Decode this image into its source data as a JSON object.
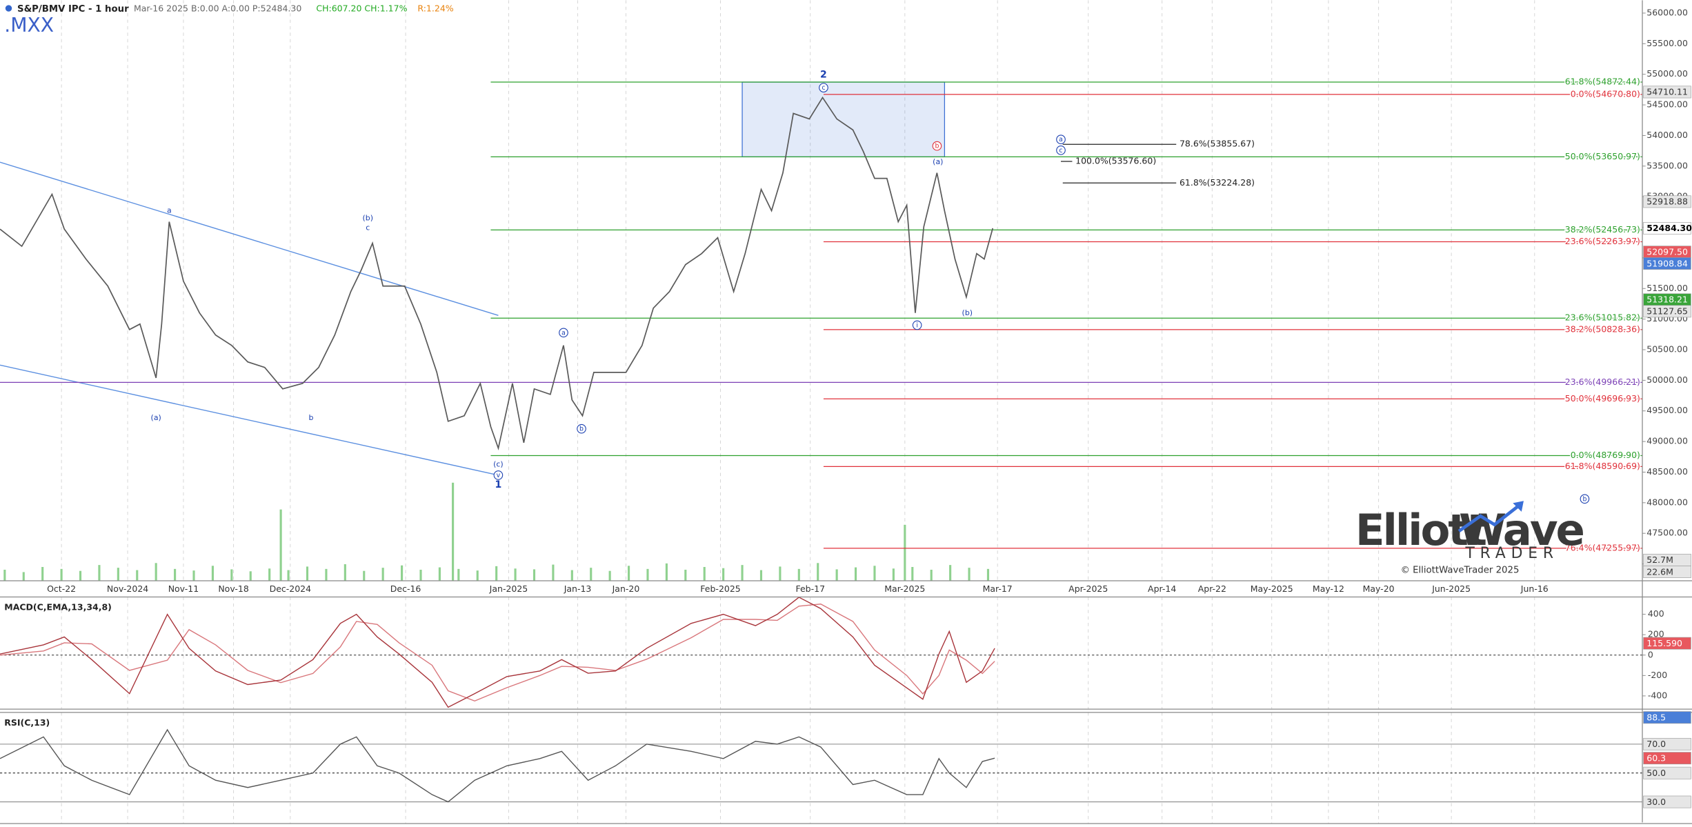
{
  "chart_data": {
    "type": "line",
    "title": "S&P/BMV IPC - 1 hour",
    "symbol": ".MXX",
    "quote": [
      "Mar-16 2025 B:0.00 A:0.00 P:52484.30",
      "CH:607.20 CH:1.17%",
      "R:1.24%"
    ],
    "x": [
      -6.5,
      -4.2,
      -1.0,
      0.3,
      2.6,
      4.9,
      7.2,
      8.3,
      10.0,
      10.6,
      11.4,
      12.9,
      14.6,
      16.3,
      18.0,
      19.7,
      21.5,
      23.4,
      25.5,
      27.2,
      28.9,
      30.6,
      31.7,
      32.9,
      34.0,
      36.3,
      38.0,
      39.7,
      40.9,
      42.6,
      44.3,
      45.4,
      46.2,
      47.7,
      48.9,
      50.0,
      51.7,
      53.1,
      54.0,
      55.1,
      56.3,
      58.0,
      59.7,
      61.4,
      62.6,
      64.3,
      66.0,
      67.7,
      69.4,
      71.1,
      72.3,
      74.0,
      75.1,
      76.3,
      77.4,
      79.1,
      80.5,
      82.0,
      83.7,
      84.8,
      86.0,
      87.3,
      88.5,
      89.4,
      90.3,
      91.2,
      92.6,
      93.4,
      94.5,
      95.7,
      96.8,
      97.6,
      98.5
    ],
    "values": [
      52470,
      52190,
      53040,
      52470,
      51980,
      51540,
      50830,
      50920,
      50040,
      50920,
      52590,
      51620,
      51100,
      50740,
      50570,
      50300,
      50210,
      49860,
      49950,
      50210,
      50740,
      51450,
      51800,
      52240,
      51540,
      51540,
      50920,
      50130,
      49330,
      49420,
      49950,
      49240,
      48890,
      49950,
      48980,
      49860,
      49770,
      50570,
      49680,
      49420,
      50130,
      50130,
      50130,
      50570,
      51180,
      51450,
      51890,
      52070,
      52330,
      51450,
      52070,
      53120,
      52770,
      53390,
      54360,
      54270,
      54620,
      54270,
      54090,
      53740,
      53300,
      53300,
      52590,
      52860,
      51100,
      52510,
      53390,
      52770,
      51980,
      51360,
      52070,
      51980,
      52484.3
    ],
    "color": "#5a5a5a",
    "xlim": [
      -6.5,
      167.2
    ],
    "ylim": [
      46725,
      56210
    ],
    "grid": true,
    "xticks": [
      {
        "value": 0,
        "label": "Oct-22"
      },
      {
        "value": 7,
        "label": "Nov-2024"
      },
      {
        "value": 12.9,
        "label": "Nov-11"
      },
      {
        "value": 18.2,
        "label": "Nov-18"
      },
      {
        "value": 24.2,
        "label": "Dec-2024"
      },
      {
        "value": 36.4,
        "label": "Dec-16"
      },
      {
        "value": 47.3,
        "label": "Jan-2025"
      },
      {
        "value": 54.6,
        "label": "Jan-13"
      },
      {
        "value": 59.7,
        "label": "Jan-20"
      },
      {
        "value": 69.7,
        "label": "Feb-2025"
      },
      {
        "value": 79.2,
        "label": "Feb-17"
      },
      {
        "value": 89.2,
        "label": "Mar-2025"
      },
      {
        "value": 99,
        "label": "Mar-17"
      },
      {
        "value": 108.6,
        "label": "Apr-2025"
      },
      {
        "value": 116.4,
        "label": "Apr-14"
      },
      {
        "value": 121.7,
        "label": "Apr-22"
      },
      {
        "value": 128,
        "label": "May-2025"
      },
      {
        "value": 134,
        "label": "May-12"
      },
      {
        "value": 139.3,
        "label": "May-20"
      },
      {
        "value": 147,
        "label": "Jun-2025"
      },
      {
        "value": 155.8,
        "label": "Jun-16"
      }
    ],
    "yticks": [
      {
        "value": 47000,
        "label": "47000.00"
      },
      {
        "value": 47500,
        "label": "47500.00"
      },
      {
        "value": 48000,
        "label": "48000.00"
      },
      {
        "value": 48500,
        "label": "48500.00"
      },
      {
        "value": 49000,
        "label": "49000.00"
      },
      {
        "value": 49500,
        "label": "49500.00"
      },
      {
        "value": 50000,
        "label": "50000.00"
      },
      {
        "value": 50500,
        "label": "50500.00"
      },
      {
        "value": 51000,
        "label": "51000.00"
      },
      {
        "value": 51500,
        "label": "51500.00"
      },
      {
        "value": 52000,
        "label": "52000.00"
      },
      {
        "value": 52500,
        "label": "52500.00"
      },
      {
        "value": 53000,
        "label": "53000.00"
      },
      {
        "value": 53500,
        "label": "53500.00"
      },
      {
        "value": 54000,
        "label": "54000.00"
      },
      {
        "value": 54500,
        "label": "54500.00"
      },
      {
        "value": 55000,
        "label": "55000.00"
      },
      {
        "value": 55500,
        "label": "55500.00"
      },
      {
        "value": 56000,
        "label": "56000.00"
      }
    ],
    "box": {
      "x": [
        72.0,
        93.4
      ],
      "values": [
        54872.44,
        53650.97
      ],
      "color": "#3b6fd4"
    },
    "trendlines": [
      {
        "x": [
          -6.5,
          46.2
        ],
        "values": [
          53564,
          51060
        ],
        "color": "#5b8fe0"
      },
      {
        "x": [
          -6.5,
          46.2
        ],
        "values": [
          50249,
          48450
        ],
        "color": "#5b8fe0"
      }
    ],
    "levels": [
      {
        "label": "61.8%(54872.44)",
        "value": 54872.44,
        "color": "#2ca02c",
        "x": [
          45.4,
          167.2
        ]
      },
      {
        "label": "50.0%(53650.97)",
        "value": 53650.97,
        "color": "#2ca02c",
        "x": [
          45.4,
          167.2
        ]
      },
      {
        "label": "38.2%(52456.73)",
        "value": 52456.73,
        "color": "#2ca02c",
        "x": [
          45.4,
          167.2
        ]
      },
      {
        "label": "23.6%(51015.82)",
        "value": 51015.82,
        "color": "#2ca02c",
        "x": [
          45.4,
          167.2
        ]
      },
      {
        "label": "0.0%(48769.90)",
        "value": 48769.9,
        "color": "#2ca02c",
        "x": [
          45.4,
          167.2
        ]
      },
      {
        "label": "23.6%(49966.21)",
        "value": 49966.21,
        "color": "#7b3fb5",
        "x": [
          -6.5,
          167.2
        ]
      },
      {
        "label": "0.0%(54670.80)",
        "value": 54670.8,
        "color": "#e0303a",
        "x": [
          80.6,
          167.2
        ]
      },
      {
        "label": "23.6%(52263.97)",
        "value": 52263.97,
        "color": "#e0303a",
        "x": [
          80.6,
          167.2
        ]
      },
      {
        "label": "38.2%(50828.36)",
        "value": 50828.36,
        "color": "#e0303a",
        "x": [
          80.6,
          167.2
        ]
      },
      {
        "label": "50.0%(49696.93)",
        "value": 49696.93,
        "color": "#e0303a",
        "x": [
          80.6,
          167.2
        ]
      },
      {
        "label": "61.8%(48590.69)",
        "value": 48590.69,
        "color": "#e0303a",
        "x": [
          80.6,
          167.2
        ]
      },
      {
        "label": "76.4%(47255.97)",
        "value": 47255.97,
        "color": "#e0303a",
        "x": [
          80.6,
          167.2
        ]
      },
      {
        "label": "78.6%(53855.67)",
        "value": 53855.67,
        "color": "#222222",
        "x": [
          105.9,
          117.9
        ]
      },
      {
        "label": "100.0%(53576.60)",
        "value": 53576.6,
        "color": "#222222",
        "x": [
          105.7,
          106.9
        ]
      },
      {
        "label": "61.8%(53224.28)",
        "value": 53224.28,
        "color": "#222222",
        "x": [
          105.9,
          117.9
        ]
      }
    ],
    "price_tags": [
      {
        "value": 54710.11,
        "label": "54710.11",
        "fill": "#e6e6e6",
        "text_color": "#333333"
      },
      {
        "value": 52918.88,
        "label": "52918.88",
        "fill": "#e6e6e6",
        "text_color": "#333333"
      },
      {
        "value": 52484.3,
        "label": "52484.30",
        "fill": "#ffffff",
        "text_color": "#000000"
      },
      {
        "value": 52097.5,
        "label": "52097.50",
        "fill": "#e8585e",
        "text_color": "#ffffff"
      },
      {
        "value": 51908.84,
        "label": "51908.84",
        "fill": "#4a7fd8",
        "text_color": "#ffffff"
      },
      {
        "value": 51318.21,
        "label": "51318.21",
        "fill": "#3aa53a",
        "text_color": "#ffffff"
      },
      {
        "value": 51127.65,
        "label": "51127.65",
        "fill": "#e6e6e6",
        "text_color": "#333333"
      }
    ],
    "annotations": [
      {
        "text": "a",
        "x": 11.4,
        "price": 52770,
        "style": "plain",
        "color": "#1a3fb0"
      },
      {
        "text": "(a)",
        "x": 10.0,
        "price": 49385,
        "style": "plain",
        "color": "#1a3fb0"
      },
      {
        "text": "b",
        "x": 26.4,
        "price": 49385,
        "style": "plain",
        "color": "#1a3fb0"
      },
      {
        "text": "(b)",
        "x": 32.4,
        "price": 52647,
        "style": "plain",
        "color": "#1a3fb0"
      },
      {
        "text": "c",
        "x": 32.4,
        "price": 52489,
        "style": "plain",
        "color": "#1a3fb0"
      },
      {
        "text": "(c)",
        "x": 46.2,
        "price": 48626,
        "style": "plain",
        "color": "#1a3fb0"
      },
      {
        "text": "v",
        "x": 46.2,
        "price": 48450,
        "style": "circle",
        "color": "#1a3fb0"
      },
      {
        "text": "1",
        "x": 46.2,
        "price": 48291,
        "style": "bold",
        "color": "#1a3fb0"
      },
      {
        "text": "a",
        "x": 53.1,
        "price": 50778,
        "style": "circle",
        "color": "#1a3fb0"
      },
      {
        "text": "b",
        "x": 55.0,
        "price": 49208,
        "style": "circle",
        "color": "#1a3fb0"
      },
      {
        "text": "2",
        "x": 80.6,
        "price": 54993,
        "style": "bold",
        "color": "#1a3fb0"
      },
      {
        "text": "c",
        "x": 80.6,
        "price": 54781,
        "style": "circle",
        "color": "#1a3fb0"
      },
      {
        "text": "b",
        "x": 92.6,
        "price": 53829,
        "style": "circle",
        "color": "#e0303a"
      },
      {
        "text": "(a)",
        "x": 92.7,
        "price": 53565,
        "style": "plain",
        "color": "#1a3fb0"
      },
      {
        "text": "i",
        "x": 90.5,
        "price": 50901,
        "style": "circle",
        "color": "#1a3fb0"
      },
      {
        "text": "(b)",
        "x": 95.8,
        "price": 51095,
        "style": "plain",
        "color": "#1a3fb0"
      },
      {
        "text": "a",
        "x": 105.7,
        "price": 53935,
        "style": "circle",
        "color": "#1a3fb0"
      },
      {
        "text": "c",
        "x": 105.7,
        "price": 53759,
        "style": "circle",
        "color": "#1a3fb0"
      },
      {
        "text": "b",
        "x": 161.1,
        "price": 48062,
        "style": "circle",
        "color": "#1a3fb0"
      }
    ],
    "volume": {
      "x": [
        -6,
        -4,
        -2,
        0,
        2,
        4,
        6,
        8,
        10,
        12,
        14,
        16,
        18,
        20,
        22,
        23.2,
        24,
        26,
        28,
        30,
        32,
        34,
        36,
        38,
        40,
        41.4,
        42,
        44,
        46,
        48,
        50,
        52,
        54,
        56,
        58,
        60,
        62,
        64,
        66,
        68,
        70,
        72,
        74,
        76,
        78,
        80,
        82,
        84,
        86,
        88,
        89.2,
        90,
        92,
        94,
        96,
        98
      ],
      "values": [
        28,
        22,
        35,
        30,
        25,
        40,
        33,
        27,
        45,
        30,
        26,
        38,
        29,
        24,
        31,
        181,
        27,
        36,
        30,
        42,
        25,
        33,
        39,
        28,
        34,
        249,
        30,
        26,
        37,
        31,
        29,
        41,
        27,
        33,
        25,
        38,
        30,
        44,
        28,
        35,
        32,
        40,
        27,
        36,
        30,
        45,
        29,
        34,
        38,
        31,
        142,
        35,
        28,
        40,
        33,
        30
      ],
      "ylim": [
        0,
        1474
      ],
      "color": "#8fd18f",
      "ticks": [
        {
          "value": 52.7,
          "label": "52.7M"
        },
        {
          "value": 22.6,
          "label": "22.6M"
        }
      ]
    },
    "macd": {
      "title": "MACD(C,EMA,13,34,8)",
      "x": [
        -6.5,
        -1.9,
        0.3,
        3.2,
        7.2,
        11.2,
        13.5,
        16.3,
        19.7,
        23.2,
        26.6,
        29.5,
        31.2,
        33.4,
        35.7,
        39.2,
        40.9,
        43.7,
        47.1,
        50.6,
        52.9,
        55.7,
        58.6,
        61.9,
        66.6,
        70.0,
        73.4,
        75.7,
        78.0,
        80.3,
        83.7,
        86.0,
        89.4,
        91.1,
        92.8,
        93.9,
        95.7,
        97.4,
        98.7
      ],
      "values": [
        11,
        100,
        178,
        -44,
        -378,
        400,
        67,
        -156,
        -289,
        -244,
        -44,
        311,
        400,
        178,
        11,
        -267,
        -511,
        -378,
        -211,
        -156,
        -44,
        -178,
        -156,
        67,
        311,
        400,
        289,
        400,
        567,
        456,
        178,
        -100,
        -322,
        -433,
        11,
        233,
        -267,
        -156,
        67
      ],
      "signal": [
        0,
        40,
        120,
        110,
        -150,
        -50,
        250,
        100,
        -150,
        -270,
        -180,
        80,
        330,
        300,
        120,
        -100,
        -350,
        -450,
        -320,
        -200,
        -110,
        -120,
        -150,
        -40,
        170,
        350,
        350,
        340,
        480,
        500,
        330,
        50,
        -200,
        -380,
        -200,
        50,
        -50,
        -180,
        -60
      ],
      "color": "#a8343a",
      "signal_color": "#d9777c",
      "ylim": [
        -530,
        570
      ],
      "yticks": [
        400,
        200,
        0,
        -200,
        -400
      ],
      "tag": {
        "value": 115.59,
        "label": "115.590",
        "fill": "#e8585e"
      }
    },
    "rsi": {
      "title": "RSI(C,13)",
      "x": [
        -6.5,
        -1.9,
        0.3,
        3.2,
        7.2,
        11.2,
        13.5,
        16.3,
        19.7,
        23.2,
        26.6,
        29.5,
        31.2,
        33.4,
        35.7,
        39.2,
        40.9,
        43.7,
        47.1,
        50.6,
        52.9,
        55.7,
        58.6,
        61.9,
        66.6,
        70.0,
        73.4,
        75.7,
        78.0,
        80.3,
        83.7,
        86.0,
        89.4,
        91.1,
        92.8,
        93.9,
        95.7,
        97.4,
        98.7
      ],
      "values": [
        60,
        75,
        55,
        45,
        35,
        80,
        55,
        45,
        40,
        45,
        50,
        70,
        75,
        55,
        50,
        35,
        30,
        45,
        55,
        60,
        65,
        45,
        55,
        70,
        65,
        60,
        72,
        70,
        75,
        68,
        42,
        45,
        35,
        35,
        60,
        50,
        40,
        58,
        60.3
      ],
      "color": "#555555",
      "ylim": [
        15,
        92
      ],
      "yticks": [
        {
          "value": 70,
          "label": "70.0"
        },
        {
          "value": 50,
          "label": "50.0"
        },
        {
          "value": 30,
          "label": "30.0"
        }
      ],
      "tags": [
        {
          "value": 88.5,
          "label": "88.5",
          "fill": "#4a7fd8"
        },
        {
          "value": 60.3,
          "label": "60.3",
          "fill": "#e8585e"
        }
      ]
    }
  },
  "logo": {
    "word1": "Elliott",
    "word2": "Wave",
    "word3": "TRADER",
    "copyright": "© ElliottWaveTrader 2025"
  }
}
